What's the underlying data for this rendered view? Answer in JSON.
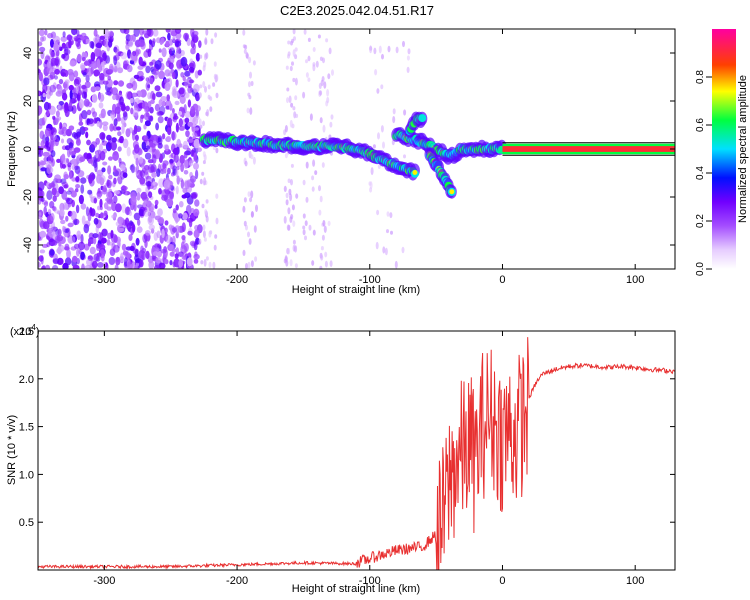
{
  "title": "C2E3.2025.042.04.51.R17",
  "chart_data": [
    {
      "type": "heatmap",
      "xlabel": "Height of straight line (km)",
      "ylabel": "Frequency (Hz)",
      "xlim": [
        -350,
        130
      ],
      "ylim": [
        -50,
        50
      ],
      "xticks": [
        -300,
        -200,
        -100,
        0,
        100
      ],
      "yticks": [
        -40,
        -20,
        0,
        20,
        40
      ],
      "colorbar": {
        "label": "Normalized spectral amplitude",
        "range": [
          0,
          1
        ],
        "ticks": [
          "0.0",
          "0.2",
          "0.4",
          "0.6",
          "0.8"
        ],
        "colors": [
          "#ffffff",
          "#d9a8ff",
          "#8000ff",
          "#0000ff",
          "#00ffff",
          "#00ff00",
          "#ffff00",
          "#ff8000",
          "#ff0000",
          "#ff00a0"
        ]
      },
      "track": {
        "main_x": [
          -225,
          -200,
          -150,
          -120,
          -100,
          -80,
          -65
        ],
        "main_y": [
          4,
          3,
          1,
          1,
          -2,
          -7,
          -10
        ],
        "branch1_x": [
          -80,
          -60,
          -50,
          -40,
          -35,
          -30,
          -20,
          0,
          130
        ],
        "branch1_y": [
          6,
          3,
          0,
          -3,
          -2,
          0,
          0,
          0,
          0
        ],
        "branch2_x": [
          -55,
          -48,
          -42,
          -38
        ],
        "branch2_y": [
          -2,
          -8,
          -14,
          -18
        ],
        "upper_x": [
          -70,
          -65,
          -60
        ],
        "upper_y": [
          8,
          12,
          13
        ]
      },
      "noise_region_x": [
        -350,
        -228
      ],
      "grid": false
    },
    {
      "type": "line",
      "xlabel": "Height of straight line (km)",
      "ylabel": "SNR (10 * v/v)",
      "multiplier": "(x10",
      "multiplier_exp": "4",
      "xlim": [
        -350,
        130
      ],
      "ylim": [
        0,
        2.5
      ],
      "xticks": [
        -300,
        -200,
        -100,
        0,
        100
      ],
      "yticks": [
        0.5,
        1.0,
        1.5,
        2.0,
        2.5
      ],
      "yticklabels": [
        "0.5",
        "1.0",
        "1.5",
        "2.0",
        "2.5"
      ],
      "series": [
        {
          "color": "#e83030",
          "x": [
            -350,
            -300,
            -250,
            -200,
            -150,
            -110,
            -95,
            -80,
            -60,
            -50,
            -45,
            -40,
            -35,
            -30,
            -25,
            -20,
            -15,
            -10,
            -5,
            0,
            5,
            10,
            15,
            20,
            25,
            30,
            40,
            50,
            60,
            70,
            80,
            90,
            100,
            110,
            120,
            130
          ],
          "y": [
            0.02,
            0.02,
            0.02,
            0.04,
            0.06,
            0.05,
            0.12,
            0.18,
            0.22,
            0.35,
            0.6,
            1.0,
            1.2,
            1.3,
            1.4,
            1.2,
            1.6,
            1.7,
            1.6,
            1.45,
            1.55,
            1.5,
            1.65,
            1.8,
            1.95,
            2.05,
            2.1,
            2.13,
            2.14,
            2.13,
            2.12,
            2.13,
            2.12,
            2.1,
            2.09,
            2.08
          ]
        }
      ],
      "grid": false
    }
  ]
}
